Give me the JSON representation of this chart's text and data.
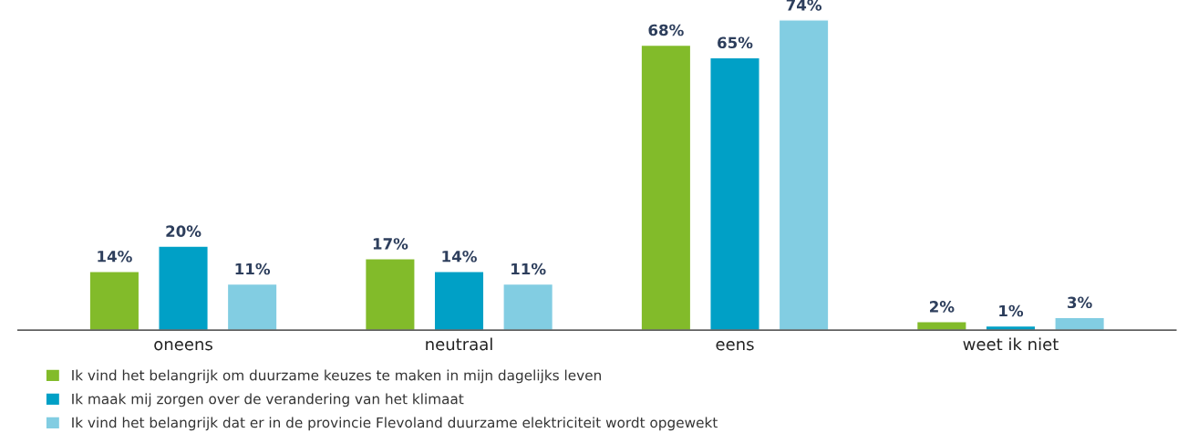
{
  "chart_data": {
    "type": "bar",
    "categories": [
      "oneens",
      "neutraal",
      "eens",
      "weet ik niet"
    ],
    "series": [
      {
        "name": "Ik vind het belangrijk om duurzame keuzes te maken in mijn dagelijks leven",
        "color": "#82bb2a",
        "values": [
          14,
          17,
          68,
          2
        ],
        "value_labels": [
          "14%",
          "17%",
          "68%",
          "2%"
        ]
      },
      {
        "name": "Ik maak mij zorgen over de verandering van het klimaat",
        "color": "#00a0c6",
        "values": [
          20,
          14,
          65,
          1
        ],
        "value_labels": [
          "20%",
          "14%",
          "65%",
          "1%"
        ]
      },
      {
        "name": "Ik vind het belangrijk dat er in de provincie Flevoland duurzame elektriciteit wordt opgewekt",
        "color": "#82cde2",
        "values": [
          11,
          11,
          74,
          3
        ],
        "value_labels": [
          "11%",
          "11%",
          "74%",
          "3%"
        ]
      }
    ],
    "tick_labels": "x",
    "grid": false,
    "legend": "bottom left"
  }
}
